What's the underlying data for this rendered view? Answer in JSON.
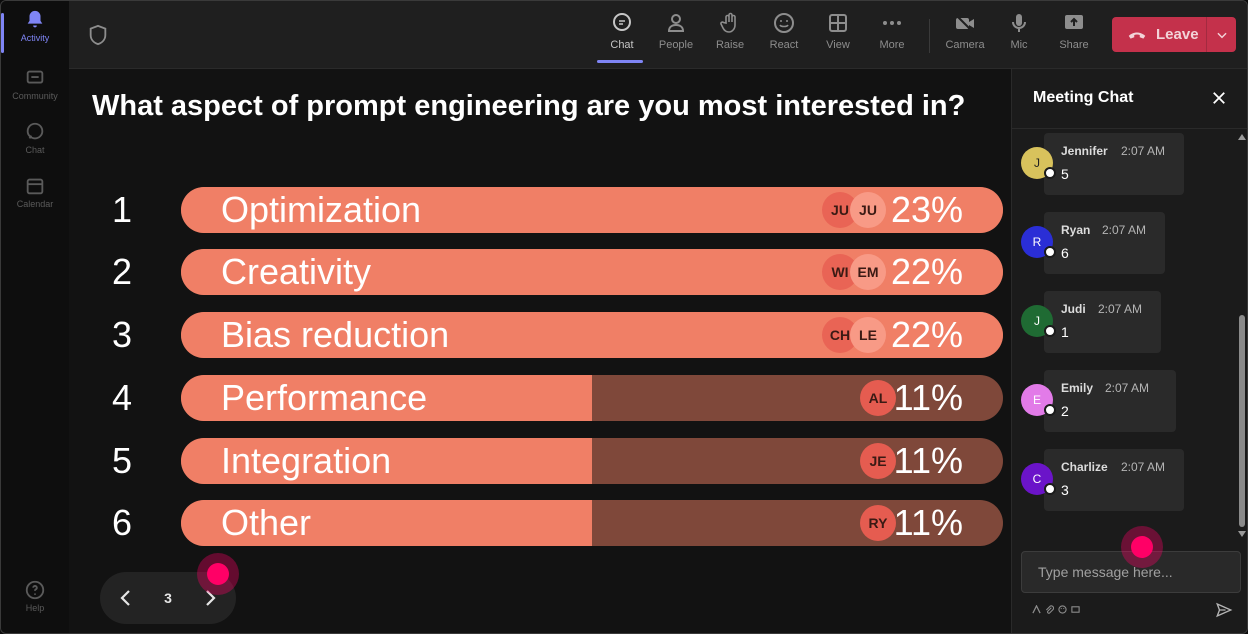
{
  "rail": {
    "items": [
      {
        "label": "Activity",
        "icon": "bell-icon"
      },
      {
        "label": "Community",
        "icon": "community-icon"
      },
      {
        "label": "Chat",
        "icon": "chat-icon"
      },
      {
        "label": "Calendar",
        "icon": "calendar-icon"
      }
    ],
    "help": "Help"
  },
  "toolbar": {
    "chat": "Chat",
    "people": "People",
    "raise": "Raise",
    "react": "React",
    "view": "View",
    "more": "More",
    "camera": "Camera",
    "mic": "Mic",
    "share": "Share",
    "leave": "Leave"
  },
  "poll": {
    "question": "What aspect of prompt engineering are you most interested in?",
    "options": [
      {
        "num": "1",
        "label": "Optimization",
        "pct": "23%",
        "share": 1.0,
        "voters": [
          "JU",
          "JU"
        ]
      },
      {
        "num": "2",
        "label": "Creativity",
        "pct": "22%",
        "share": 1.0,
        "voters": [
          "WI",
          "EM"
        ]
      },
      {
        "num": "3",
        "label": "Bias reduction",
        "pct": "22%",
        "share": 1.0,
        "voters": [
          "CH",
          "LE"
        ]
      },
      {
        "num": "4",
        "label": "Performance",
        "pct": "11%",
        "share": 0.5,
        "voters": [
          "AL"
        ]
      },
      {
        "num": "5",
        "label": "Integration",
        "pct": "11%",
        "share": 0.5,
        "voters": [
          "JE"
        ]
      },
      {
        "num": "6",
        "label": "Other",
        "pct": "11%",
        "share": 0.5,
        "voters": [
          "RY"
        ]
      }
    ],
    "page": "3"
  },
  "chat": {
    "title": "Meeting Chat",
    "messages": [
      {
        "initial": "J",
        "name": "Jennifer",
        "time": "2:07 AM",
        "text": "5",
        "color": "#d8c25c",
        "textColor": "#222"
      },
      {
        "initial": "R",
        "name": "Ryan",
        "time": "2:07 AM",
        "text": "6",
        "color": "#2a2ed6",
        "textColor": "#fff"
      },
      {
        "initial": "J",
        "name": "Judi",
        "time": "2:07 AM",
        "text": "1",
        "color": "#1f6b33",
        "textColor": "#fff"
      },
      {
        "initial": "E",
        "name": "Emily",
        "time": "2:07 AM",
        "text": "2",
        "color": "#e27be8",
        "textColor": "#fff"
      },
      {
        "initial": "C",
        "name": "Charlize",
        "time": "2:07 AM",
        "text": "3",
        "color": "#6b14c9",
        "textColor": "#fff"
      }
    ],
    "placeholder": "Type message here..."
  }
}
